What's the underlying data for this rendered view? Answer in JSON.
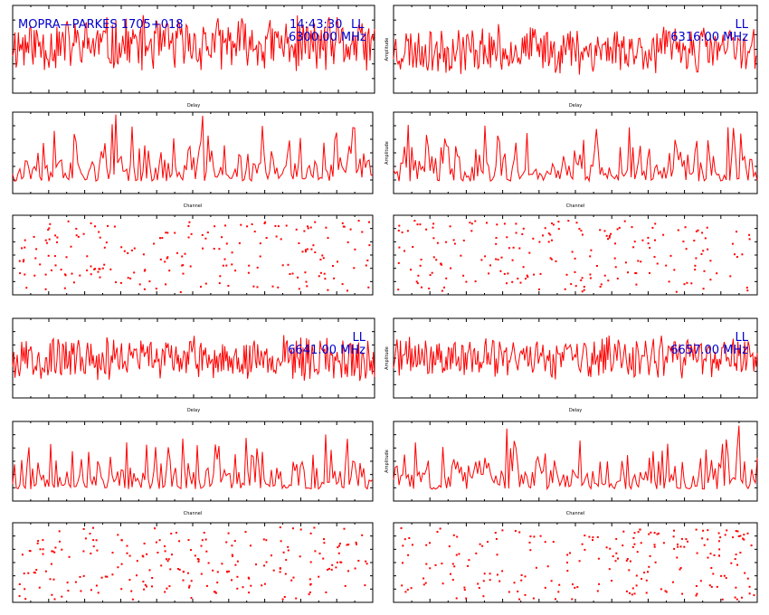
{
  "header": {
    "source": "MOPRA—PARKES 1705+018",
    "time": "14:43:30",
    "polarization": "LL"
  },
  "colors": {
    "trace": "#ff0000",
    "annotation": "#0000cc",
    "axes": "#000000"
  },
  "chart_data": [
    {
      "id": "p1",
      "type": "line",
      "kind": "delay",
      "xlabel": "Delay",
      "ylabel": "",
      "annotations": [],
      "xticks": [],
      "yticks": [],
      "series": [
        {
          "style": "noisy-line",
          "n": 320,
          "level": 0.55,
          "spread": 0.35,
          "seed": 11
        }
      ]
    },
    {
      "id": "p2",
      "type": "line",
      "kind": "delay",
      "xlabel": "Delay",
      "ylabel": "Amplitude",
      "annotations": [
        "LL",
        "6316.00 MHz"
      ],
      "xticks": [],
      "yticks": [],
      "series": [
        {
          "style": "noisy-line",
          "n": 320,
          "level": 0.5,
          "spread": 0.3,
          "seed": 23
        }
      ]
    },
    {
      "id": "p3",
      "type": "line",
      "kind": "channel",
      "xlabel": "Channel",
      "ylabel": "",
      "annotations": [],
      "xticks": [],
      "yticks": [],
      "series": [
        {
          "style": "spiky-line",
          "n": 200,
          "level": 0.15,
          "spread": 0.35,
          "seed": 37
        }
      ]
    },
    {
      "id": "p4",
      "type": "line",
      "kind": "channel",
      "xlabel": "Channel",
      "ylabel": "Amplitude",
      "annotations": [],
      "xticks": [],
      "yticks": [],
      "series": [
        {
          "style": "spiky-line",
          "n": 200,
          "level": 0.15,
          "spread": 0.35,
          "seed": 41
        }
      ]
    },
    {
      "id": "p5",
      "type": "scatter",
      "kind": "phase",
      "xlabel": "",
      "ylabel": "",
      "annotations": [],
      "xticks": [],
      "yticks": [],
      "series": [
        {
          "style": "dots",
          "n": 200,
          "seed": 53
        }
      ]
    },
    {
      "id": "p6",
      "type": "scatter",
      "kind": "phase",
      "xlabel": "",
      "ylabel": "",
      "annotations": [],
      "xticks": [],
      "yticks": [],
      "series": [
        {
          "style": "dots",
          "n": 200,
          "seed": 59
        }
      ]
    },
    {
      "id": "p7",
      "type": "line",
      "kind": "delay",
      "xlabel": "Delay",
      "ylabel": "",
      "annotations": [
        "LL",
        "6641.00 MHz"
      ],
      "xticks": [],
      "yticks": [],
      "series": [
        {
          "style": "noisy-line",
          "n": 320,
          "level": 0.5,
          "spread": 0.3,
          "seed": 67
        }
      ]
    },
    {
      "id": "p8",
      "type": "line",
      "kind": "delay",
      "xlabel": "Delay",
      "ylabel": "Amplitude",
      "annotations": [
        "LL",
        "6657.00 MHz"
      ],
      "xticks": [],
      "yticks": [],
      "series": [
        {
          "style": "noisy-line",
          "n": 320,
          "level": 0.5,
          "spread": 0.3,
          "seed": 71
        }
      ]
    },
    {
      "id": "p9",
      "type": "line",
      "kind": "channel",
      "xlabel": "Channel",
      "ylabel": "",
      "annotations": [],
      "xticks": [],
      "yticks": [],
      "series": [
        {
          "style": "spiky-line",
          "n": 200,
          "level": 0.15,
          "spread": 0.35,
          "seed": 79
        }
      ]
    },
    {
      "id": "p10",
      "type": "line",
      "kind": "channel",
      "xlabel": "Channel",
      "ylabel": "Amplitude",
      "annotations": [],
      "xticks": [],
      "yticks": [],
      "series": [
        {
          "style": "spiky-line",
          "n": 200,
          "level": 0.15,
          "spread": 0.35,
          "seed": 83
        }
      ]
    },
    {
      "id": "p11",
      "type": "scatter",
      "kind": "phase",
      "xlabel": "",
      "ylabel": "",
      "annotations": [],
      "xticks": [],
      "yticks": [],
      "series": [
        {
          "style": "dots",
          "n": 220,
          "seed": 89
        }
      ]
    },
    {
      "id": "p12",
      "type": "scatter",
      "kind": "phase",
      "xlabel": "",
      "ylabel": "",
      "annotations": [],
      "xticks": [],
      "yticks": [],
      "series": [
        {
          "style": "dots",
          "n": 220,
          "seed": 97
        }
      ]
    }
  ]
}
